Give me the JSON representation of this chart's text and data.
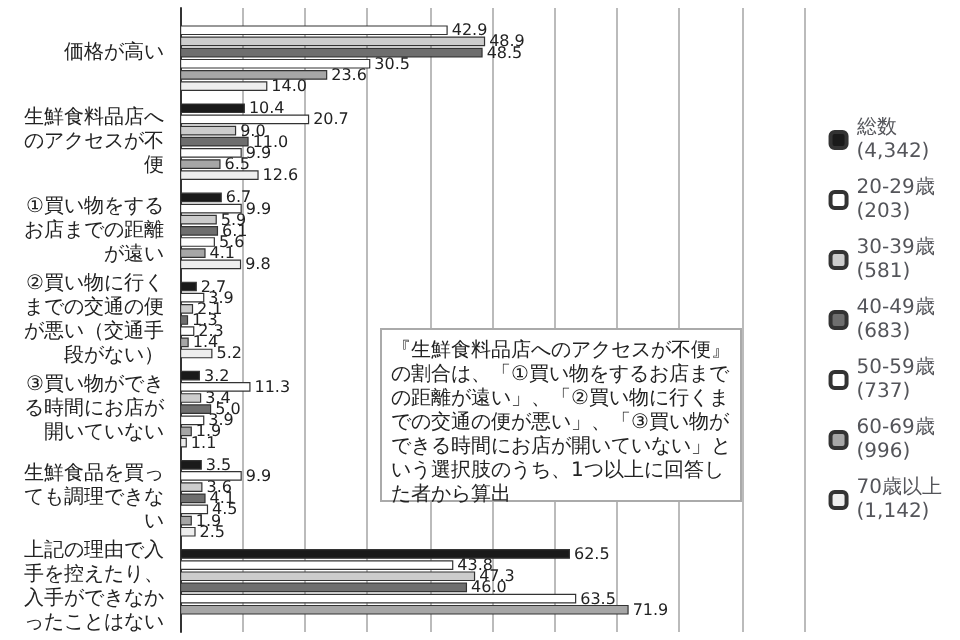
{
  "chart_data": {
    "type": "bar",
    "orientation": "horizontal",
    "categories": [
      "価格が高い",
      "生鮮食料品店へのアクセスが不便",
      "①買い物をするお店までの距離が遠い",
      "②買い物に行くまでの交通の便が悪い（交通手段がない）",
      "③買い物ができる時間にお店が開いていない",
      "生鮮食品を買っても調理できない",
      "上記の理由で入手を控えたり、入手ができなかったことはない"
    ],
    "series": [
      {
        "name": "総数\n(4,342)",
        "color": "#1a1a1a",
        "values": [
          null,
          10.4,
          6.7,
          2.7,
          3.2,
          3.5,
          62.5
        ],
        "value_labels": [
          null,
          "10.4",
          "6.7",
          "2.7",
          "3.2",
          "3.5",
          "62.5"
        ]
      },
      {
        "name": "20-29歳\n(203)",
        "color": "#ffffff",
        "values": [
          42.9,
          20.7,
          9.9,
          3.9,
          11.3,
          9.9,
          43.8
        ],
        "value_labels": [
          "42.9",
          "20.7",
          "9.9",
          "3.9",
          "11.3",
          "9.9",
          "43.8"
        ]
      },
      {
        "name": "30-39歳\n(581)",
        "color": "#cccccc",
        "values": [
          48.9,
          9.0,
          5.9,
          2.1,
          3.4,
          3.6,
          47.3
        ],
        "value_labels": [
          "48.9",
          "9.0",
          "5.9",
          "2.1",
          "3.4",
          "3.6",
          "47.3"
        ]
      },
      {
        "name": "40-49歳\n(683)",
        "color": "#6e6e6e",
        "values": [
          48.5,
          11.0,
          6.1,
          1.3,
          5.0,
          4.1,
          46.0
        ],
        "value_labels": [
          "48.5",
          "11.0",
          "6.1",
          "1.3",
          "5.0",
          "4.1",
          "46.0"
        ]
      },
      {
        "name": "50-59歳\n(737)",
        "color": "#ffffff",
        "values": [
          30.5,
          9.9,
          5.6,
          2.3,
          3.9,
          4.5,
          63.5
        ],
        "value_labels": [
          "30.5",
          "9.9",
          "5.6",
          "2.3",
          "3.9",
          "4.5",
          "63.5"
        ]
      },
      {
        "name": "60-69歳\n(996)",
        "color": "#a6a6a6",
        "values": [
          23.6,
          6.5,
          4.1,
          1.4,
          1.9,
          1.9,
          71.9
        ],
        "value_labels": [
          "23.6",
          "6.5",
          "4.1",
          "1.4",
          "1.9",
          "1.9",
          "71.9"
        ]
      },
      {
        "name": "70歳以上\n(1,142)",
        "color": "#eeeeee",
        "values": [
          14.0,
          12.6,
          9.8,
          5.2,
          1.1,
          2.5,
          null
        ],
        "value_labels": [
          "14.0",
          "12.6",
          "9.8",
          "5.2",
          "1.1",
          "2.5",
          null
        ]
      }
    ],
    "xlim": [
      0,
      100
    ],
    "xticks": [
      {
        "value": 0,
        "label": null
      },
      {
        "value": 10,
        "label": null
      },
      {
        "value": 20,
        "label": null
      },
      {
        "value": 30,
        "label": null
      },
      {
        "value": 40,
        "label": null
      },
      {
        "value": 50,
        "label": null
      },
      {
        "value": 60,
        "label": null
      },
      {
        "value": 70,
        "label": null
      },
      {
        "value": 80,
        "label": null
      },
      {
        "value": 90,
        "label": null
      },
      {
        "value": 100,
        "label": null
      }
    ],
    "tick_labels": "y",
    "grid": "x",
    "legend": "right",
    "annotations": [
      "『生鮮食料品店へのアクセスが不便』の割合は、「①買い物をするお店までの距離が遠い」、「②買い物に行くまでの交通の便が悪い」、「③買い物ができる時間にお店が開いていない」という選択肢のうち、1つ以上に回答した者から算出"
    ]
  }
}
